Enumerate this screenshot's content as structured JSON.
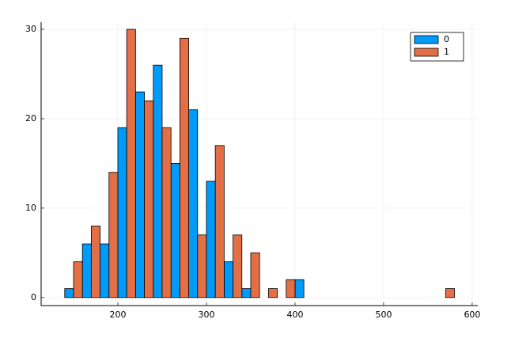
{
  "chart_data": {
    "type": "grouped_histogram",
    "bins": [
      140,
      160,
      180,
      200,
      220,
      240,
      260,
      280,
      300,
      320,
      340,
      360,
      380,
      400,
      420,
      440,
      460,
      480,
      500,
      520,
      540,
      560,
      580
    ],
    "series": [
      {
        "name": "0",
        "color": "#009af9",
        "values": [
          1,
          6,
          6,
          19,
          23,
          26,
          15,
          21,
          13,
          4,
          1,
          0,
          0,
          2,
          0,
          0,
          0,
          0,
          0,
          0,
          0,
          0
        ]
      },
      {
        "name": "1",
        "color": "#e26f46",
        "values": [
          4,
          8,
          14,
          30,
          22,
          19,
          29,
          7,
          17,
          7,
          5,
          1,
          2,
          0,
          0,
          0,
          0,
          0,
          0,
          0,
          0,
          1
        ]
      }
    ],
    "xlim": [
      113.4,
      606.3
    ],
    "xticks": [
      200,
      300,
      400,
      500,
      600
    ],
    "ylim": [
      -0.9,
      30.8
    ],
    "yticks": [
      0,
      10,
      20,
      30
    ],
    "grid": true,
    "legend": "top-right"
  }
}
